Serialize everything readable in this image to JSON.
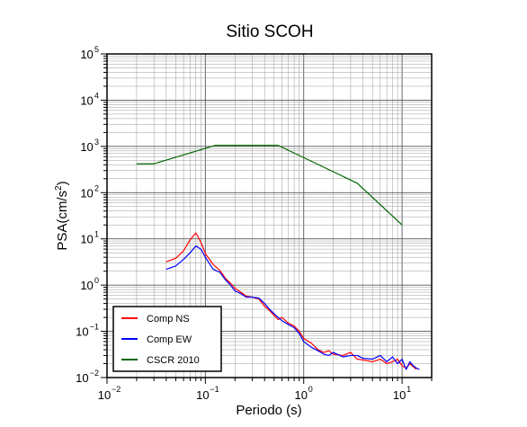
{
  "chart_data": {
    "type": "line",
    "title": "Sitio SCOH",
    "xlabel": "Periodo (s)",
    "ylabel": "PSA(cm/s2)",
    "xscale": "log",
    "yscale": "log",
    "xlim": [
      0.01,
      20
    ],
    "ylim": [
      0.01,
      100000
    ],
    "x_tick_labels": [
      {
        "value": 0.01,
        "base": "10",
        "exp": "−2"
      },
      {
        "value": 0.1,
        "base": "10",
        "exp": "−1"
      },
      {
        "value": 1,
        "base": "10",
        "exp": "0"
      },
      {
        "value": 10,
        "base": "10",
        "exp": "1"
      }
    ],
    "y_tick_labels": [
      {
        "value": 0.01,
        "base": "10",
        "exp": "−2"
      },
      {
        "value": 0.1,
        "base": "10",
        "exp": "−1"
      },
      {
        "value": 1,
        "base": "10",
        "exp": "0"
      },
      {
        "value": 10,
        "base": "10",
        "exp": "1"
      },
      {
        "value": 100,
        "base": "10",
        "exp": "2"
      },
      {
        "value": 1000,
        "base": "10",
        "exp": "3"
      },
      {
        "value": 10000,
        "base": "10",
        "exp": "4"
      },
      {
        "value": 100000,
        "base": "10",
        "exp": "5"
      }
    ],
    "grid": true,
    "legend_position": "bottom-left",
    "series": [
      {
        "name": "Comp NS",
        "color": "#ff0000",
        "points": [
          [
            0.04,
            3.2
          ],
          [
            0.05,
            3.8
          ],
          [
            0.06,
            5.5
          ],
          [
            0.07,
            9.5
          ],
          [
            0.08,
            13.5
          ],
          [
            0.09,
            8.5
          ],
          [
            0.1,
            4.8
          ],
          [
            0.12,
            2.8
          ],
          [
            0.14,
            2.1
          ],
          [
            0.16,
            1.4
          ],
          [
            0.18,
            1.1
          ],
          [
            0.2,
            0.85
          ],
          [
            0.23,
            0.7
          ],
          [
            0.26,
            0.58
          ],
          [
            0.3,
            0.55
          ],
          [
            0.35,
            0.5
          ],
          [
            0.4,
            0.35
          ],
          [
            0.45,
            0.28
          ],
          [
            0.5,
            0.22
          ],
          [
            0.55,
            0.18
          ],
          [
            0.6,
            0.2
          ],
          [
            0.7,
            0.15
          ],
          [
            0.8,
            0.13
          ],
          [
            0.9,
            0.1
          ],
          [
            1.0,
            0.07
          ],
          [
            1.2,
            0.055
          ],
          [
            1.4,
            0.04
          ],
          [
            1.6,
            0.035
          ],
          [
            1.8,
            0.038
          ],
          [
            2.0,
            0.032
          ],
          [
            2.5,
            0.03
          ],
          [
            3.0,
            0.035
          ],
          [
            3.5,
            0.025
          ],
          [
            4.0,
            0.024
          ],
          [
            5.0,
            0.022
          ],
          [
            6.0,
            0.025
          ],
          [
            7.0,
            0.02
          ],
          [
            8.0,
            0.022
          ],
          [
            9.0,
            0.025
          ],
          [
            10.0,
            0.018
          ],
          [
            11.0,
            0.016
          ],
          [
            12.0,
            0.02
          ],
          [
            14.0,
            0.015
          ]
        ]
      },
      {
        "name": "Comp EW",
        "color": "#0000ff",
        "points": [
          [
            0.04,
            2.2
          ],
          [
            0.05,
            2.6
          ],
          [
            0.06,
            3.6
          ],
          [
            0.07,
            5.0
          ],
          [
            0.08,
            7.0
          ],
          [
            0.09,
            6.0
          ],
          [
            0.1,
            4.0
          ],
          [
            0.12,
            2.2
          ],
          [
            0.14,
            1.9
          ],
          [
            0.16,
            1.3
          ],
          [
            0.18,
            1.0
          ],
          [
            0.2,
            0.75
          ],
          [
            0.23,
            0.65
          ],
          [
            0.26,
            0.55
          ],
          [
            0.3,
            0.55
          ],
          [
            0.35,
            0.52
          ],
          [
            0.4,
            0.4
          ],
          [
            0.45,
            0.3
          ],
          [
            0.5,
            0.24
          ],
          [
            0.55,
            0.2
          ],
          [
            0.6,
            0.17
          ],
          [
            0.7,
            0.14
          ],
          [
            0.8,
            0.12
          ],
          [
            0.9,
            0.09
          ],
          [
            1.0,
            0.06
          ],
          [
            1.2,
            0.045
          ],
          [
            1.4,
            0.038
          ],
          [
            1.6,
            0.032
          ],
          [
            1.8,
            0.03
          ],
          [
            2.0,
            0.035
          ],
          [
            2.5,
            0.028
          ],
          [
            3.0,
            0.03
          ],
          [
            3.5,
            0.03
          ],
          [
            4.0,
            0.026
          ],
          [
            5.0,
            0.025
          ],
          [
            6.0,
            0.03
          ],
          [
            7.0,
            0.022
          ],
          [
            8.0,
            0.028
          ],
          [
            9.0,
            0.02
          ],
          [
            10.0,
            0.025
          ],
          [
            11.0,
            0.015
          ],
          [
            12.0,
            0.022
          ],
          [
            13.0,
            0.018
          ],
          [
            14.0,
            0.016
          ],
          [
            15.0,
            0.015
          ]
        ]
      },
      {
        "name": "CSCR 2010",
        "color": "#006600",
        "points": [
          [
            0.02,
            420
          ],
          [
            0.03,
            420
          ],
          [
            0.125,
            1050
          ],
          [
            0.55,
            1050
          ],
          [
            3.5,
            160
          ],
          [
            10.0,
            20
          ]
        ]
      }
    ]
  }
}
